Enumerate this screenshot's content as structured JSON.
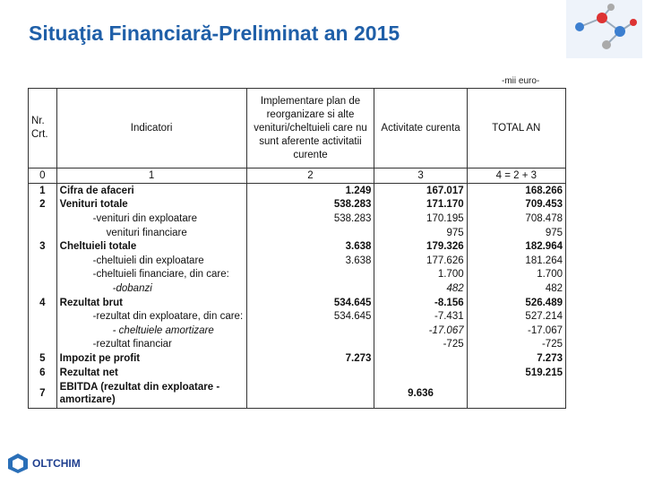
{
  "header": {
    "title": "Situaţia Financiară-Preliminat an 2015",
    "unit": "-mii euro-"
  },
  "table": {
    "columns": [
      "Nr. Crt.",
      "Indicatori",
      "Implementare plan de reorganizare si alte venituri/cheltuieli care nu sunt aferente activitatii curente",
      "Activitate curenta",
      "TOTAL AN"
    ],
    "numbering": [
      "0",
      "1",
      "2",
      "3",
      "4 = 2 + 3"
    ],
    "rows": [
      [
        "1",
        "Cifra de afaceri",
        "1.249",
        "167.017",
        "168.266"
      ],
      [
        "2",
        "Venituri totale",
        "538.283",
        "171.170",
        "709.453"
      ],
      [
        null,
        "-venituri din exploatare",
        "538.283",
        "170.195",
        "708.478"
      ],
      [
        null,
        "venituri financiare",
        null,
        "975",
        "975"
      ],
      [
        "3",
        "Cheltuieli totale",
        "3.638",
        "179.326",
        "182.964"
      ],
      [
        null,
        "-cheltuieli din exploatare",
        "3.638",
        "177.626",
        "181.264"
      ],
      [
        null,
        "-cheltuieli financiare, din care:",
        null,
        "1.700",
        "1.700"
      ],
      [
        null,
        "-dobanzi",
        null,
        "482",
        "482"
      ],
      [
        "4",
        "Rezultat brut",
        "534.645",
        "-8.156",
        "526.489"
      ],
      [
        null,
        "-rezultat din exploatare, din care:",
        "534.645",
        "-7.431",
        "527.214"
      ],
      [
        null,
        "- cheltuiele amortizare",
        null,
        "-17.067",
        "-17.067"
      ],
      [
        null,
        "-rezultat financiar",
        null,
        "-725",
        "-725"
      ],
      [
        "5",
        "Impozit pe profit",
        "7.273",
        null,
        "7.273"
      ],
      [
        "6",
        "Rezultat net",
        null,
        null,
        "519.215"
      ],
      [
        "7",
        "EBITDA (rezultat din exploatare - amortizare)",
        null,
        "9.636",
        null
      ]
    ]
  },
  "footer": {
    "logo": "OLTCHIM"
  }
}
